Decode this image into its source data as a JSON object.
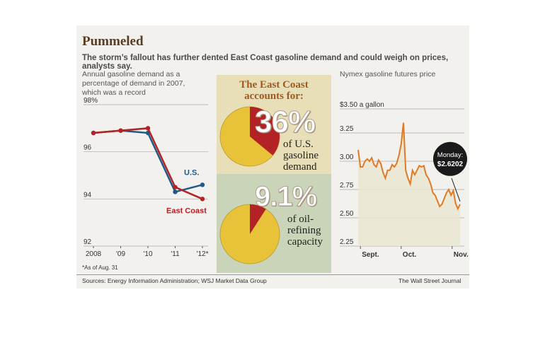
{
  "title": "Pummeled",
  "subtitle": "The storm’s fallout has further dented East Coast gasoline demand and could weigh on prices, analysts say.",
  "footer": {
    "sources": "Sources: Energy Information Administration; WSJ Market Data Group",
    "credit": "The Wall Street Journal",
    "note": "*As of Aug. 31"
  },
  "middle": {
    "heading": "The East Coast accounts for:",
    "stat1": {
      "value": "36%",
      "label": "of U.S. gasoline demand",
      "share": 0.36
    },
    "stat2": {
      "value": "9.1%",
      "label": "of oil-refining capacity",
      "share": 0.091
    }
  },
  "colors": {
    "east_coast": "#b32225",
    "us": "#1e5a87",
    "futures": "#e07a24",
    "pie_fill": "#e8c33a",
    "pie_slice": "#b32225"
  },
  "chart_data": [
    {
      "type": "line",
      "title": "Annual gasoline demand as a percentage of demand in 2007, which was a record",
      "x": [
        "2008",
        "'09",
        "'10",
        "'11",
        "'12*"
      ],
      "series": [
        {
          "name": "U.S.",
          "values": [
            96.8,
            96.9,
            96.8,
            94.3,
            94.6
          ]
        },
        {
          "name": "East Coast",
          "values": [
            96.8,
            96.9,
            97.0,
            94.5,
            94.0
          ]
        }
      ],
      "ylim": [
        92,
        98
      ],
      "yticks": [
        "98%",
        "96",
        "94",
        "92"
      ],
      "grid": true
    },
    {
      "type": "line",
      "title": "Nymex gasoline futures price",
      "ylabel": "$3.50 a gallon",
      "yticks": [
        "3.25",
        "3.00",
        "2.75",
        "2.50",
        "2.25"
      ],
      "ylim": [
        2.25,
        3.5
      ],
      "xticks": [
        "Sept.",
        "Oct.",
        "Nov."
      ],
      "series": [
        {
          "name": "Nymex gasoline futures",
          "values": [
            3.1,
            2.95,
            2.95,
            3.0,
            3.02,
            3.0,
            3.03,
            2.97,
            2.95,
            3.01,
            2.98,
            2.9,
            2.85,
            2.92,
            2.92,
            2.97,
            2.95,
            2.98,
            3.05,
            3.15,
            3.34,
            2.92,
            2.85,
            2.8,
            2.92,
            2.88,
            2.92,
            2.96,
            2.95,
            2.96,
            2.88,
            2.85,
            2.8,
            2.72,
            2.7,
            2.65,
            2.6,
            2.62,
            2.67,
            2.72,
            2.75,
            2.7,
            2.74,
            2.63,
            2.58,
            2.6202
          ]
        }
      ],
      "annotation": {
        "label": "Monday:",
        "value": "$2.6202"
      },
      "grid": true
    }
  ]
}
